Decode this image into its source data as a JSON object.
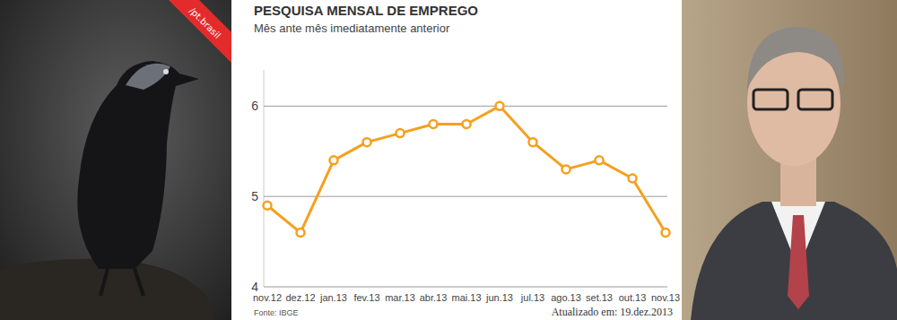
{
  "badge": {
    "text": "/pt.brasil"
  },
  "chart_data": {
    "type": "line",
    "title": "PESQUISA MENSAL DE EMPREGO",
    "subtitle": "Mês ante mês imediatamente anterior",
    "categories": [
      "nov.12",
      "dez.12",
      "jan.13",
      "fev.13",
      "mar.13",
      "abr.13",
      "mai.13",
      "jun.13",
      "jul.13",
      "ago.13",
      "set.13",
      "out.13",
      "nov.13"
    ],
    "values": [
      4.9,
      4.6,
      5.4,
      5.6,
      5.7,
      5.8,
      5.8,
      6.0,
      5.6,
      5.3,
      5.4,
      5.2,
      4.6
    ],
    "color": "#f5a01e",
    "marker": "circle",
    "ylim": [
      4,
      6.4
    ],
    "yticks": [
      4,
      5,
      6
    ],
    "grid": true,
    "source": "Fonte: IBGE",
    "updated": "Atualizado em: 19.dez.2013"
  }
}
